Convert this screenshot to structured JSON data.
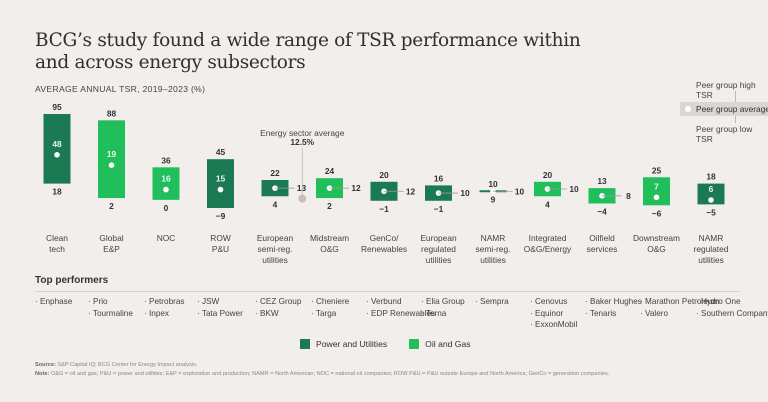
{
  "title": "BCG’s study found a wide range of TSR performance within and across energy subsectors",
  "subtitle": "AVERAGE ANNUAL TSR, 2019–2023 (%)",
  "peer_legend": {
    "high": "Peer group high TSR",
    "average": "Peer group average TSR",
    "low": "Peer group low TSR"
  },
  "energy_average": {
    "label": "Energy sector average",
    "value_label": "12.5%",
    "value": 12.5
  },
  "colors": {
    "power_utilities": "#1b7a53",
    "oil_gas": "#21bf5b",
    "average_marker": "#c9bfb5",
    "background": "#f1eeeb"
  },
  "chart_data": {
    "type": "range-bar",
    "title": "BCG’s study found a wide range of TSR performance within and across energy subsectors",
    "ylabel": "Average annual TSR, 2019–2023 (%)",
    "ylim": [
      -9,
      95
    ],
    "grid": false,
    "legend_position": "bottom-center",
    "series": [
      {
        "name": "Power and Utilities",
        "color": "#1b7a53"
      },
      {
        "name": "Oil and Gas",
        "color": "#21bf5b"
      }
    ],
    "categories": [
      {
        "label": "Clean tech",
        "lines": [
          "Clean",
          "tech"
        ],
        "high": 95,
        "avg": 48,
        "low": 18,
        "group": "Power and Utilities",
        "avg_label_side": "inside"
      },
      {
        "label": "Global E&P",
        "lines": [
          "Global",
          "E&P"
        ],
        "high": 88,
        "avg": 19,
        "low": 2,
        "group": "Oil and Gas",
        "avg_label_side": "inside"
      },
      {
        "label": "NOC",
        "lines": [
          "NOC"
        ],
        "high": 36,
        "avg": 16,
        "low": 0,
        "group": "Oil and Gas",
        "avg_label_side": "inside"
      },
      {
        "label": "ROW P&U",
        "lines": [
          "ROW",
          "P&U"
        ],
        "high": 45,
        "avg": 15,
        "low": -9,
        "group": "Power and Utilities",
        "avg_label_side": "inside"
      },
      {
        "label": "European semi-reg. utilities",
        "lines": [
          "European",
          "semi-reg.",
          "utilities"
        ],
        "high": 22,
        "avg": 13,
        "low": 4,
        "group": "Power and Utilities",
        "avg_label_side": "right"
      },
      {
        "label": "Midstream O&G",
        "lines": [
          "Midstream",
          "O&G"
        ],
        "high": 24,
        "avg": 12,
        "low": 2,
        "group": "Oil and Gas",
        "avg_label_side": "right"
      },
      {
        "label": "GenCo/ Renewables",
        "lines": [
          "GenCo/",
          "Renewables"
        ],
        "high": 20,
        "avg": 12,
        "low": -1,
        "group": "Power and Utilities",
        "avg_label_side": "right"
      },
      {
        "label": "European regulated utilities",
        "lines": [
          "European",
          "regulated",
          "utilities"
        ],
        "high": 16,
        "avg": 10,
        "low": -1,
        "group": "Power and Utilities",
        "avg_label_side": "right"
      },
      {
        "label": "NAMR semi-reg. utilities",
        "lines": [
          "NAMR",
          "semi-reg.",
          "utilities"
        ],
        "high": 10,
        "avg": 10,
        "low": 9,
        "group": "Power and Utilities",
        "avg_label_side": "right"
      },
      {
        "label": "Integrated O&G/Energy",
        "lines": [
          "Integrated",
          "O&G/Energy"
        ],
        "high": 20,
        "avg": 10,
        "low": 4,
        "group": "Oil and Gas",
        "avg_label_side": "right"
      },
      {
        "label": "Oilfield services",
        "lines": [
          "Oilfield",
          "services"
        ],
        "high": 13,
        "avg": 8,
        "low": -4,
        "group": "Oil and Gas",
        "avg_label_side": "right"
      },
      {
        "label": "Downstream O&G",
        "lines": [
          "Downstream",
          "O&G"
        ],
        "high": 25,
        "avg": 7,
        "low": -6,
        "group": "Oil and Gas",
        "avg_label_side": "inside"
      },
      {
        "label": "NAMR regulated utilities",
        "lines": [
          "NAMR",
          "regulated",
          "utilities"
        ],
        "high": 18,
        "avg": 6,
        "low": -5,
        "group": "Power and Utilities",
        "avg_label_side": "inside"
      }
    ]
  },
  "top_performers": {
    "title": "Top performers",
    "columns": [
      [
        "Enphase"
      ],
      [
        "Prio",
        "Tourmaline"
      ],
      [
        "Petrobras",
        "Inpex"
      ],
      [
        "JSW",
        "Tata Power"
      ],
      [
        "CEZ Group",
        "BKW"
      ],
      [
        "Cheniere",
        "Targa"
      ],
      [
        "Verbund",
        "EDP Renewables"
      ],
      [
        "Elia Group",
        "Terna"
      ],
      [
        "Sempra"
      ],
      [
        "Cenovus",
        "Equinor",
        "ExxonMobil"
      ],
      [
        "Baker Hughes",
        "Tenaris"
      ],
      [
        "Marathon Petroleum",
        "Valero"
      ],
      [
        "Hydro One",
        "Southern Company"
      ]
    ]
  },
  "legend": {
    "power_utilities": "Power and Utilities",
    "oil_gas": "Oil and Gas"
  },
  "footnotes": {
    "source_label": "Source:",
    "source": "S&P Capital IQ; BCG Center for Energy Impact analysis.",
    "note_label": "Note:",
    "note": "O&G = oil and gas; P&U = power and utilities; E&P = exploration and production; NAMR = North American; NOC = national oil companies; ROW P&U = P&U outside Europe and North America; GenCo = generation companies."
  }
}
